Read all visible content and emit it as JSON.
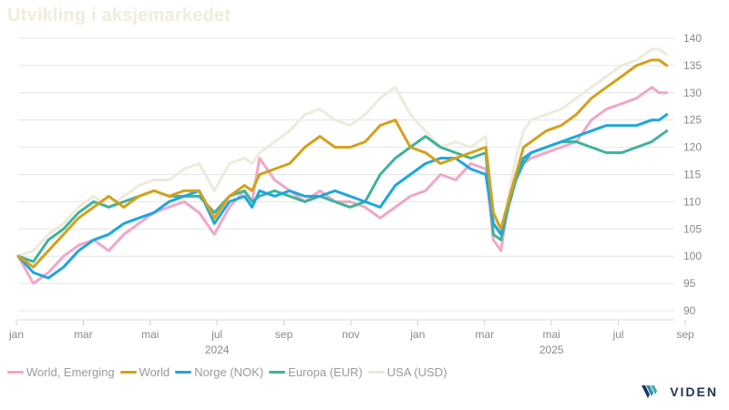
{
  "chart_data": {
    "type": "line",
    "title": "Utvikling i aksjemarkedet",
    "x_ticks": [
      "jan",
      "mar",
      "mai",
      "jul",
      "sep",
      "nov",
      "jan",
      "mar",
      "mai",
      "jul",
      "sep"
    ],
    "year_labels": [
      {
        "label": "2024",
        "at_tick": 3
      },
      {
        "label": "2025",
        "at_tick": 8
      }
    ],
    "x_unit": "weeks since start of Jan 2024",
    "xlim": [
      0,
      87
    ],
    "ylim": [
      90,
      140
    ],
    "y_ticks": [
      90,
      95,
      100,
      105,
      110,
      115,
      120,
      125,
      130,
      135,
      140
    ],
    "grid": true,
    "legend_position": "bottom-left",
    "x": [
      0,
      2,
      4,
      6,
      8,
      10,
      12,
      14,
      16,
      18,
      20,
      22,
      24,
      26,
      28,
      30,
      31,
      32,
      34,
      36,
      38,
      40,
      42,
      44,
      46,
      48,
      50,
      52,
      54,
      56,
      58,
      60,
      62,
      63,
      64,
      65,
      66,
      67,
      68,
      70,
      72,
      74,
      76,
      78,
      80,
      82,
      84,
      85,
      86
    ],
    "series": [
      {
        "name": "World, Emerging",
        "color": "#f2a6c8",
        "values": [
          100,
          95,
          97,
          100,
          102,
          103,
          101,
          104,
          106,
          108,
          109,
          110,
          108,
          104,
          109,
          112,
          110,
          118,
          114,
          112,
          110,
          112,
          110,
          110,
          109,
          107,
          109,
          111,
          112,
          115,
          114,
          117,
          116,
          103,
          101,
          110,
          115,
          117,
          118,
          119,
          120,
          121,
          125,
          127,
          128,
          129,
          131,
          130,
          130
        ]
      },
      {
        "name": "World",
        "color": "#d6a019",
        "values": [
          100,
          98,
          101,
          104,
          107,
          109,
          111,
          109,
          111,
          112,
          111,
          112,
          112,
          107,
          111,
          113,
          112,
          115,
          116,
          117,
          120,
          122,
          120,
          120,
          121,
          124,
          125,
          120,
          119,
          117,
          118,
          119,
          120,
          108,
          105,
          110,
          115,
          120,
          121,
          123,
          124,
          126,
          129,
          131,
          133,
          135,
          136,
          136,
          135
        ]
      },
      {
        "name": "Norge (NOK)",
        "color": "#1ba7de",
        "values": [
          100,
          97,
          96,
          98,
          101,
          103,
          104,
          106,
          107,
          108,
          110,
          111,
          112,
          106,
          110,
          111,
          109,
          112,
          111,
          112,
          111,
          111,
          112,
          111,
          110,
          109,
          113,
          115,
          117,
          118,
          118,
          116,
          115,
          106,
          104,
          110,
          115,
          118,
          119,
          120,
          121,
          122,
          123,
          124,
          124,
          124,
          125,
          125,
          126
        ]
      },
      {
        "name": "Europa (EUR)",
        "color": "#3fb39a",
        "values": [
          100,
          99,
          103,
          105,
          108,
          110,
          109,
          110,
          111,
          112,
          111,
          111,
          111,
          108,
          111,
          112,
          110,
          111,
          112,
          111,
          110,
          111,
          110,
          109,
          110,
          115,
          118,
          120,
          122,
          120,
          119,
          118,
          119,
          104,
          103,
          109,
          114,
          117,
          119,
          120,
          121,
          121,
          120,
          119,
          119,
          120,
          121,
          122,
          123
        ]
      },
      {
        "name": "USA (USD)",
        "color": "#ecebdc",
        "values": [
          100,
          101,
          104,
          106,
          109,
          111,
          109,
          111,
          113,
          114,
          114,
          116,
          117,
          112,
          117,
          118,
          117,
          119,
          121,
          123,
          126,
          127,
          125,
          124,
          126,
          129,
          131,
          126,
          123,
          120,
          121,
          120,
          122,
          107,
          104,
          111,
          118,
          123,
          125,
          126,
          127,
          129,
          131,
          133,
          135,
          136,
          138,
          138,
          137
        ]
      }
    ]
  },
  "brand": {
    "name": "VIDEN"
  }
}
